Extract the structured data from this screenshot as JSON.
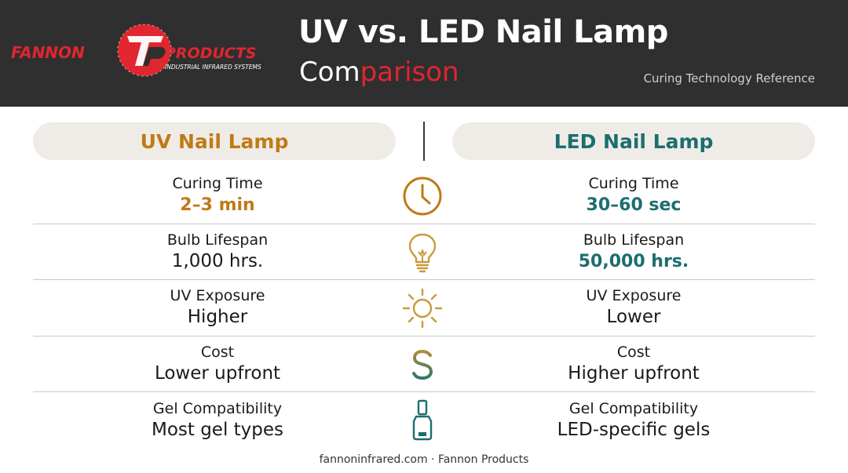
{
  "colors": {
    "header_bg": "#2f2f2f",
    "uv_accent": "#c07a16",
    "led_accent": "#1c6e6e",
    "brand_red": "#e0262f",
    "pill_bg": "#efece7"
  },
  "header": {
    "logo": {
      "brand_left": "FANNON",
      "brand_right": "PRODUCTS",
      "tagline": "INDUSTRIAL INFRARED SYSTEMS",
      "monogram": "FP"
    },
    "title_line1": "UV vs. LED Nail Lamp",
    "title_line2_part1": "Com",
    "title_line2_part2": "parison",
    "subtitle": "Curing Technology Reference"
  },
  "columns": {
    "left_heading": "UV Nail Lamp",
    "right_heading": "LED Nail Lamp"
  },
  "rows": [
    {
      "icon": "clock-icon",
      "left_label": "Curing Time",
      "left_value": "2–3 min",
      "right_label": "Curing Time",
      "right_value": "30–60 sec"
    },
    {
      "icon": "lightbulb-icon",
      "left_label": "Bulb Lifespan",
      "left_value": "1,000 hrs.",
      "right_label": "Bulb Lifespan",
      "right_value": "50,000 hrs."
    },
    {
      "icon": "sun-icon",
      "left_label": "UV Exposure",
      "left_value": "Higher",
      "right_label": "UV Exposure",
      "right_value": "Lower"
    },
    {
      "icon": "dollar-icon",
      "left_label": "Cost",
      "left_value": "Lower upfront",
      "right_label": "Cost",
      "right_value": "Higher upfront"
    },
    {
      "icon": "nail-polish-icon",
      "left_label": "Gel Compatibility",
      "left_value": "Most gel types",
      "right_label": "Gel Compatibility",
      "right_value": "LED-specific gels"
    }
  ],
  "footer": "fannoninfrared.com · Fannon Products"
}
